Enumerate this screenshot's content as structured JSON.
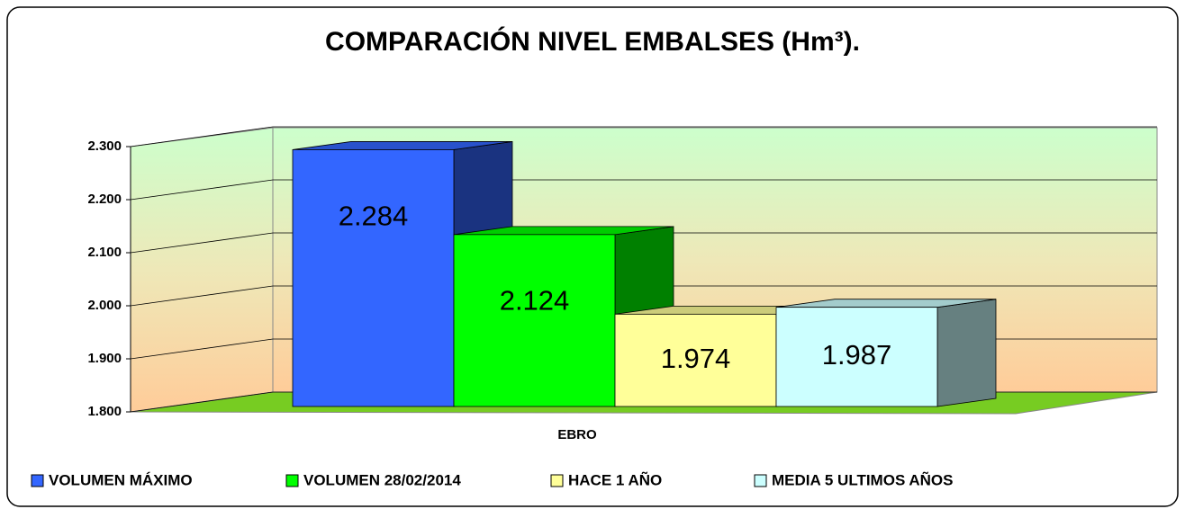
{
  "chart_data": {
    "type": "bar3d",
    "title": "COMPARACIÓN NIVEL EMBALSES (Hm³).",
    "categories": [
      "EBRO"
    ],
    "series": [
      {
        "name": "VOLUMEN MÁXIMO",
        "color": "#3366ff",
        "values": [
          2284
        ],
        "value_labels": [
          "2.284"
        ]
      },
      {
        "name": "VOLUMEN 28/02/2014",
        "color": "#00ff00",
        "values": [
          2124
        ],
        "value_labels": [
          "2.124"
        ]
      },
      {
        "name": "HACE 1 AÑO",
        "color": "#ffff99",
        "values": [
          1974
        ],
        "value_labels": [
          "1.974"
        ]
      },
      {
        "name": "MEDIA 5 ULTIMOS AÑOS",
        "color": "#ccffff",
        "values": [
          1987
        ],
        "value_labels": [
          "1.987"
        ]
      }
    ],
    "ylim": [
      1800,
      2300
    ],
    "yticks": [
      {
        "value": 1800,
        "label": "1.800"
      },
      {
        "value": 1900,
        "label": "1.900"
      },
      {
        "value": 2000,
        "label": "2.000"
      },
      {
        "value": 2100,
        "label": "2.100"
      },
      {
        "value": 2200,
        "label": "2.200"
      },
      {
        "value": 2300,
        "label": "2.300"
      }
    ],
    "grid": true,
    "legend": "bottom"
  }
}
